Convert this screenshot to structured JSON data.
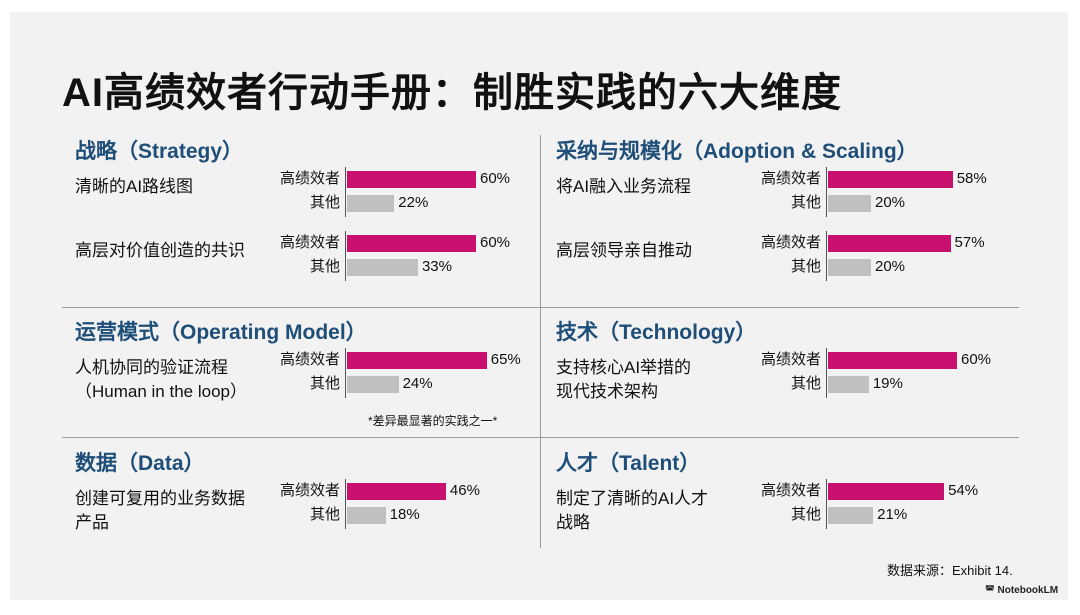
{
  "title": "AI高绩效者行动手册：制胜实践的六大维度",
  "note": "*差异最显著的实践之一*",
  "source": "数据来源：Exhibit 14.",
  "brand": "NotebookLM",
  "colors": {
    "high": "#c8106e",
    "other": "#c0c0c0",
    "heading": "#1f4e79"
  },
  "chart_data": {
    "type": "bar",
    "title": "AI高绩效者行动手册：制胜实践的六大维度",
    "series_names": [
      "高绩效者",
      "其他"
    ],
    "unit": "%",
    "sections": [
      {
        "title": "战略（Strategy）",
        "items": [
          {
            "label": "清晰的AI路线图",
            "high": 60,
            "other": 22
          },
          {
            "label": "高层对价值创造的共识",
            "high": 60,
            "other": 33
          }
        ]
      },
      {
        "title": "采纳与规模化（Adoption & Scaling）",
        "items": [
          {
            "label": "将AI融入业务流程",
            "high": 58,
            "other": 20
          },
          {
            "label": "高层领导亲自推动",
            "high": 57,
            "other": 20
          }
        ]
      },
      {
        "title": "运营模式（Operating Model）",
        "items": [
          {
            "label": "人机协同的验证流程（Human in the loop）",
            "high": 65,
            "other": 24
          }
        ]
      },
      {
        "title": "技术（Technology）",
        "items": [
          {
            "label": "支持核心AI举措的现代技术架构",
            "high": 60,
            "other": 19
          }
        ]
      },
      {
        "title": "数据（Data）",
        "items": [
          {
            "label": "创建可复用的业务数据产品",
            "high": 46,
            "other": 18
          }
        ]
      },
      {
        "title": "人才（Talent）",
        "items": [
          {
            "label": "制定了清晰的AI人才战略",
            "high": 54,
            "other": 21
          }
        ]
      }
    ]
  }
}
